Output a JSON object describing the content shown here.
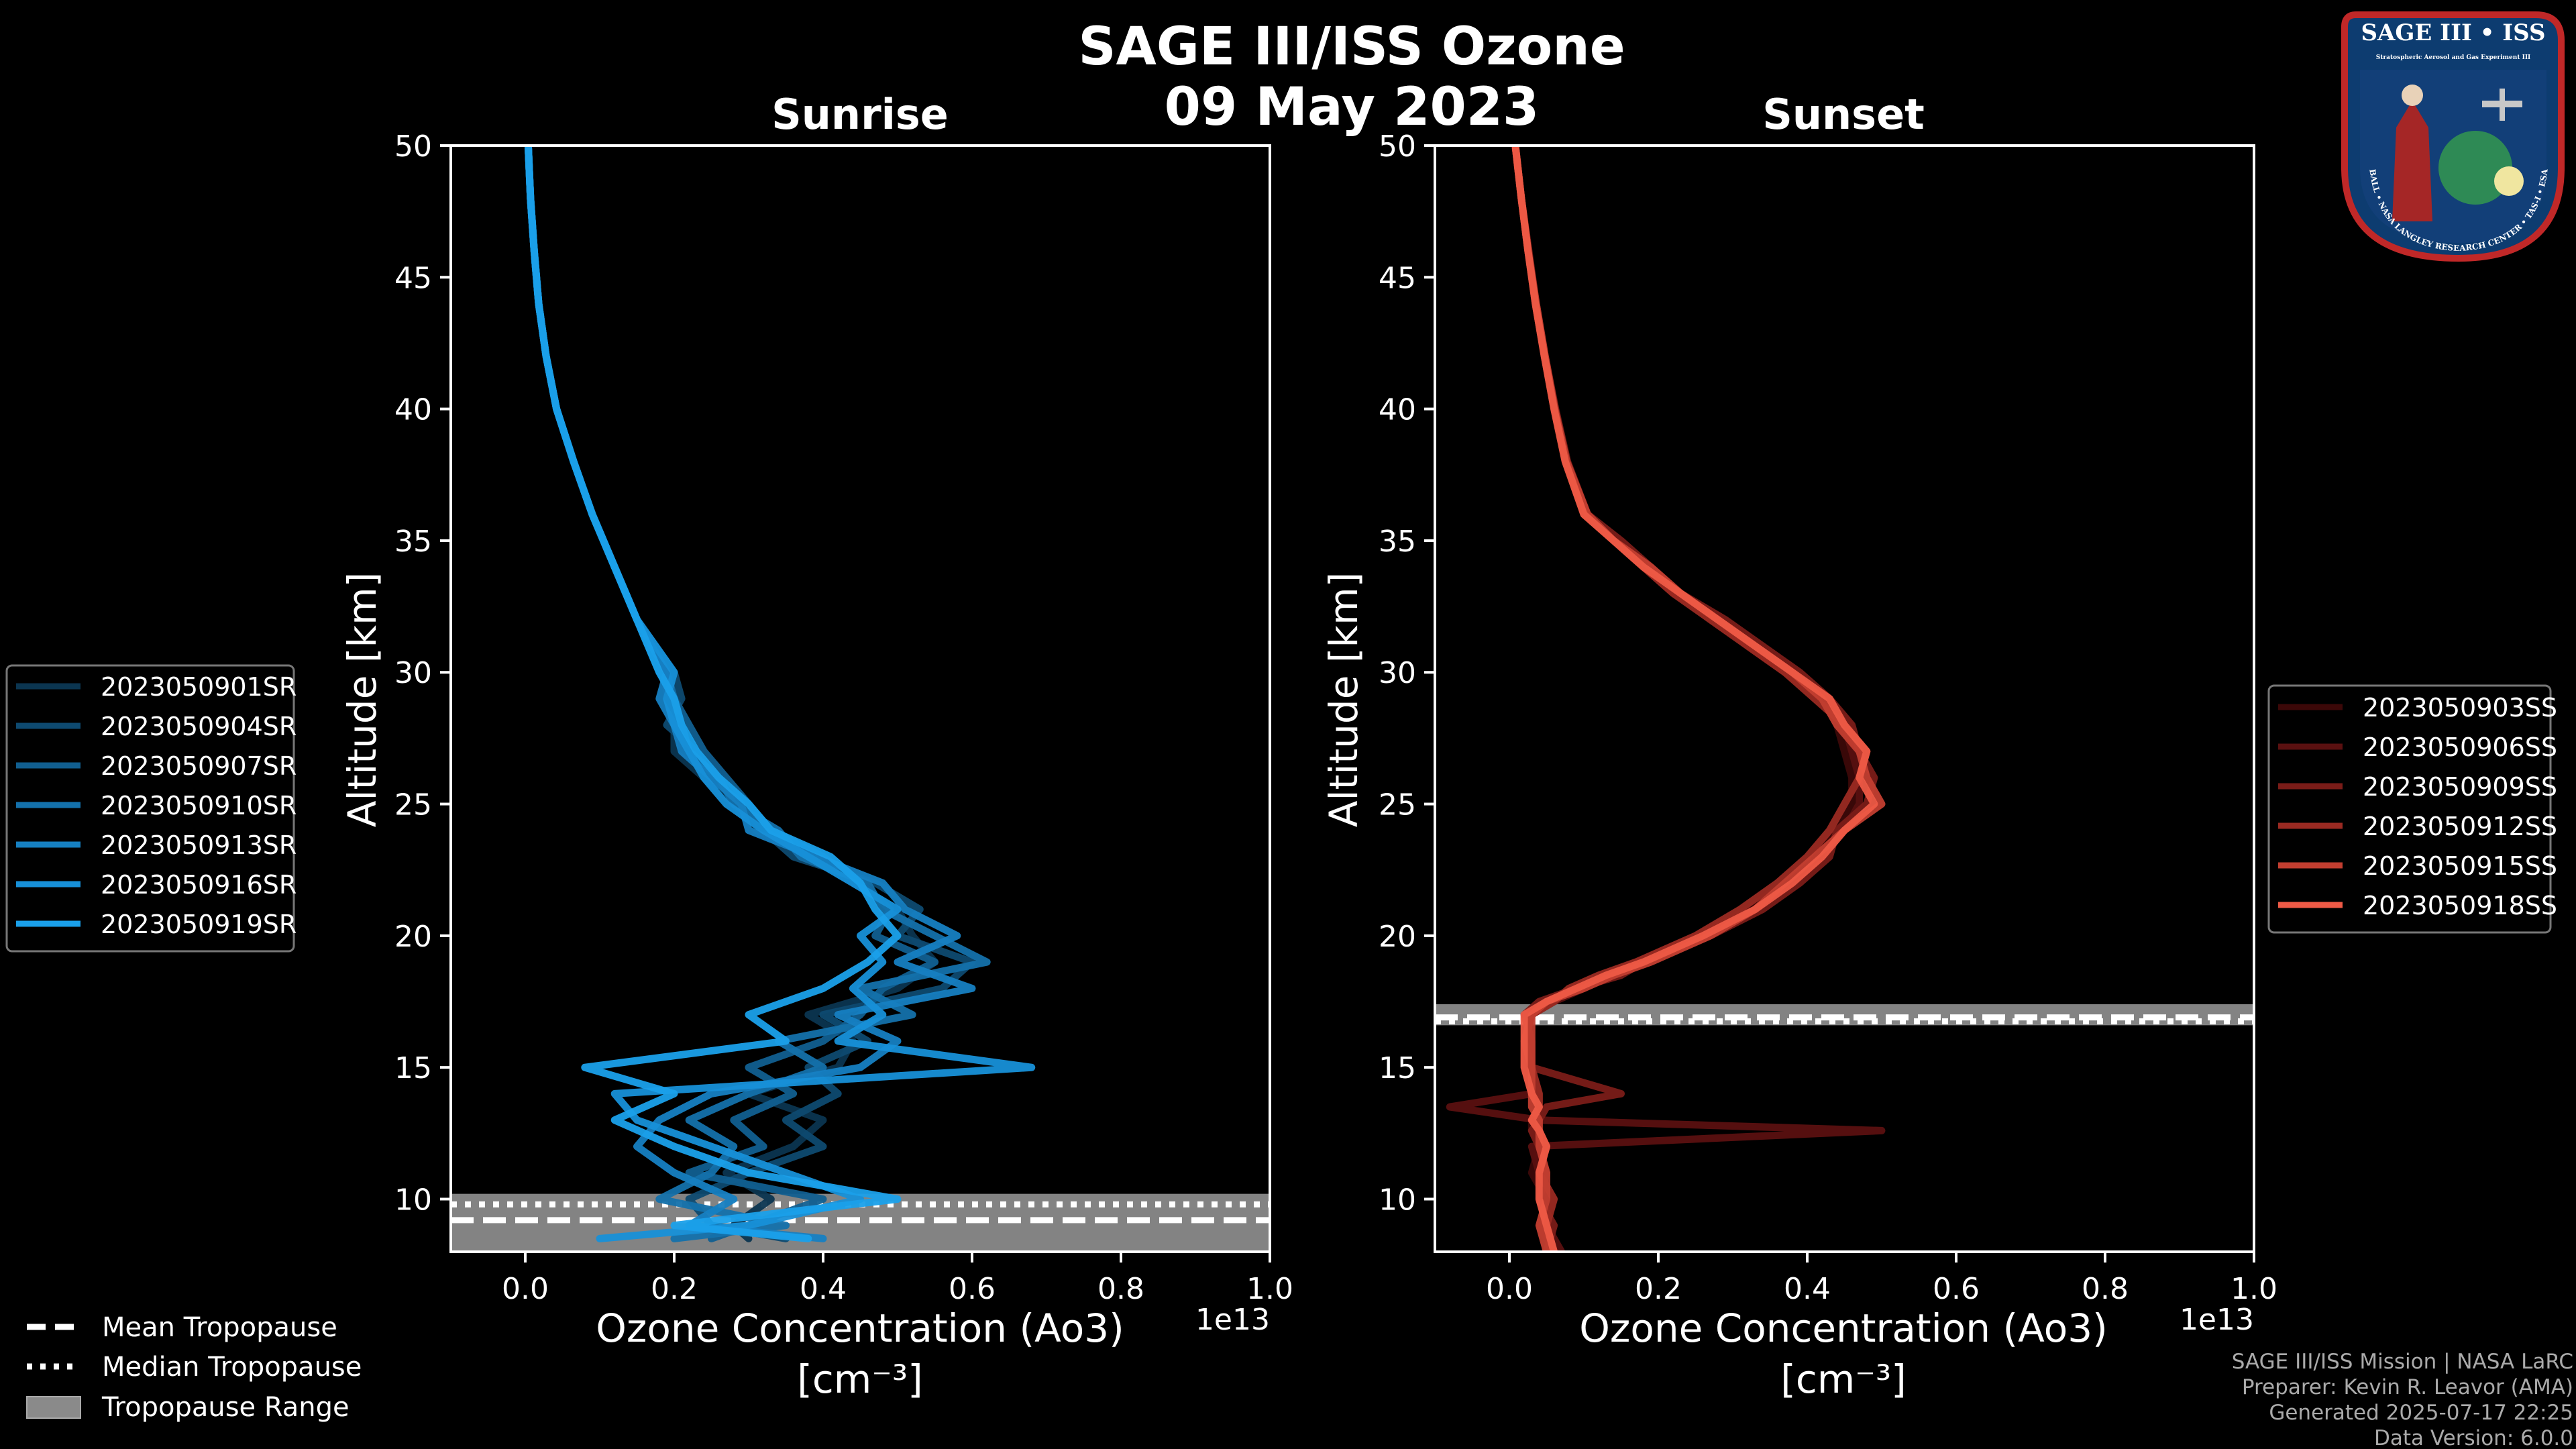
{
  "figure": {
    "title_line1": "SAGE III/ISS Ozone",
    "title_line2": "09 May 2023"
  },
  "badge": {
    "title": "SAGE III • ISS",
    "subtitle": "Stratospheric Aerosol and Gas Experiment III",
    "ring_text": "BALL • NASA LANGLEY RESEARCH CENTER • TAS-I • ESA"
  },
  "credits": {
    "line1": "SAGE III/ISS Mission | NASA LaRC",
    "line2": "Preparer: Kevin R. Leavor (AMA)",
    "line3": "Generated 2025-07-17 22:25",
    "line4": "Data Version: 6.0.0"
  },
  "tropo_legend": {
    "mean": "Mean Tropopause",
    "median": "Median Tropopause",
    "range": "Tropopause Range"
  },
  "colors": {
    "sunrise": [
      "#0b3550",
      "#0e4a70",
      "#115f90",
      "#1471ab",
      "#1680c2",
      "#1790d8",
      "#1aa0ea"
    ],
    "sunset": [
      "#3c0808",
      "#5a1010",
      "#7a1c18",
      "#9a2a22",
      "#c23e30",
      "#ee5a46"
    ],
    "tropo_range": "#8a8a8a"
  },
  "chart_data": [
    {
      "type": "line",
      "title": "Sunrise",
      "xlabel": "Ozone Concentration (Ao3)",
      "xlabel_units": "[cm⁻³]",
      "ylabel": "Altitude [km]",
      "x_offset_label": "1e13",
      "xlim": [
        -0.1,
        1.0
      ],
      "ylim": [
        8,
        50
      ],
      "xticks": [
        "0.0",
        "0.2",
        "0.4",
        "0.6",
        "0.8",
        "1.0"
      ],
      "yticks": [
        "10",
        "15",
        "20",
        "25",
        "30",
        "35",
        "40",
        "45",
        "50"
      ],
      "tropopause": {
        "mean": 9.2,
        "median": 9.8,
        "range": [
          8.0,
          10.2
        ]
      },
      "altitudes": [
        8.5,
        9,
        10,
        11,
        12,
        13,
        14,
        15,
        16,
        17,
        18,
        19,
        20,
        21,
        22,
        23,
        24,
        25,
        26,
        27,
        28,
        29,
        30,
        32,
        34,
        36,
        38,
        40,
        42,
        44,
        46,
        48,
        50
      ],
      "series": [
        {
          "name": "2023050901SR",
          "values": [
            0.3,
            0.28,
            0.33,
            0.27,
            0.36,
            0.4,
            0.3,
            0.42,
            0.44,
            0.38,
            0.5,
            0.55,
            0.52,
            0.5,
            0.44,
            0.38,
            0.31,
            0.28,
            0.24,
            0.2,
            0.2,
            0.19,
            0.19,
            0.15,
            0.12,
            0.09,
            0.065,
            0.042,
            0.028,
            0.018,
            0.012,
            0.007,
            0.004
          ]
        },
        {
          "name": "2023050904SR",
          "values": [
            0.35,
            0.25,
            0.22,
            0.3,
            0.4,
            0.35,
            0.42,
            0.38,
            0.46,
            0.4,
            0.56,
            0.6,
            0.5,
            0.53,
            0.47,
            0.36,
            0.32,
            0.29,
            0.25,
            0.23,
            0.19,
            0.21,
            0.2,
            0.15,
            0.12,
            0.09,
            0.065,
            0.042,
            0.028,
            0.018,
            0.012,
            0.007,
            0.004
          ]
        },
        {
          "name": "2023050907SR",
          "values": [
            0.25,
            0.3,
            0.4,
            0.22,
            0.32,
            0.28,
            0.36,
            0.3,
            0.4,
            0.45,
            0.48,
            0.55,
            0.47,
            0.49,
            0.45,
            0.4,
            0.33,
            0.3,
            0.27,
            0.24,
            0.22,
            0.2,
            0.18,
            0.15,
            0.12,
            0.09,
            0.065,
            0.042,
            0.028,
            0.018,
            0.012,
            0.007,
            0.004
          ]
        },
        {
          "name": "2023050910SR",
          "values": [
            0.2,
            0.35,
            0.18,
            0.25,
            0.28,
            0.22,
            0.3,
            0.4,
            0.34,
            0.52,
            0.45,
            0.62,
            0.55,
            0.48,
            0.46,
            0.37,
            0.34,
            0.28,
            0.26,
            0.22,
            0.21,
            0.2,
            0.19,
            0.15,
            0.12,
            0.09,
            0.065,
            0.042,
            0.028,
            0.018,
            0.012,
            0.007,
            0.004
          ]
        },
        {
          "name": "2023050913SR",
          "values": [
            0.4,
            0.22,
            0.28,
            0.2,
            0.15,
            0.18,
            0.25,
            0.45,
            0.5,
            0.42,
            0.6,
            0.5,
            0.58,
            0.51,
            0.48,
            0.39,
            0.3,
            0.29,
            0.25,
            0.21,
            0.2,
            0.18,
            0.19,
            0.15,
            0.12,
            0.09,
            0.065,
            0.042,
            0.028,
            0.018,
            0.012,
            0.007,
            0.004
          ]
        },
        {
          "name": "2023050916SR",
          "values": [
            0.1,
            0.3,
            0.45,
            0.35,
            0.25,
            0.15,
            0.12,
            0.68,
            0.42,
            0.48,
            0.44,
            0.48,
            0.45,
            0.5,
            0.44,
            0.38,
            0.32,
            0.27,
            0.24,
            0.22,
            0.2,
            0.19,
            0.2,
            0.15,
            0.12,
            0.09,
            0.065,
            0.042,
            0.028,
            0.018,
            0.012,
            0.007,
            0.004
          ]
        },
        {
          "name": "2023050919SR",
          "values": [
            0.38,
            0.2,
            0.5,
            0.3,
            0.2,
            0.12,
            0.2,
            0.08,
            0.35,
            0.3,
            0.4,
            0.46,
            0.5,
            0.47,
            0.45,
            0.41,
            0.33,
            0.3,
            0.26,
            0.23,
            0.21,
            0.2,
            0.18,
            0.15,
            0.12,
            0.09,
            0.065,
            0.042,
            0.028,
            0.018,
            0.012,
            0.007,
            0.004
          ]
        }
      ]
    },
    {
      "type": "line",
      "title": "Sunset",
      "xlabel": "Ozone Concentration (Ao3)",
      "xlabel_units": "[cm⁻³]",
      "ylabel": "Altitude [km]",
      "x_offset_label": "1e13",
      "xlim": [
        -0.1,
        1.0
      ],
      "ylim": [
        8,
        50
      ],
      "tropopause": {
        "mean": 16.9,
        "median": 16.75,
        "range": [
          16.6,
          17.4
        ]
      },
      "xticks": [
        "0.0",
        "0.2",
        "0.4",
        "0.6",
        "0.8",
        "1.0"
      ],
      "yticks": [
        "10",
        "15",
        "20",
        "25",
        "30",
        "35",
        "40",
        "45",
        "50"
      ],
      "altitudes": [
        8,
        9,
        10,
        11,
        12,
        12.6,
        13,
        13.5,
        14,
        15,
        16,
        17,
        17.5,
        18,
        18.5,
        19,
        20,
        21,
        22,
        23,
        24,
        25,
        26,
        27,
        28,
        29,
        30,
        31,
        32,
        33,
        34,
        35,
        36,
        38,
        40,
        42,
        44,
        46,
        48,
        50
      ],
      "series": [
        {
          "name": "2023050903SS",
          "values": [
            0.06,
            0.04,
            0.05,
            0.03,
            0.04,
            0.03,
            0.03,
            0.04,
            0.03,
            0.02,
            0.02,
            0.03,
            0.05,
            0.09,
            0.14,
            0.17,
            0.25,
            0.32,
            0.37,
            0.41,
            0.44,
            0.46,
            0.46,
            0.45,
            0.44,
            0.42,
            0.38,
            0.33,
            0.28,
            0.23,
            0.18,
            0.14,
            0.105,
            0.075,
            0.06,
            0.047,
            0.035,
            0.025,
            0.016,
            0.008
          ]
        },
        {
          "name": "2023050906SS",
          "values": [
            0.07,
            0.05,
            0.04,
            0.04,
            0.03,
            0.5,
            0.04,
            -0.08,
            0.03,
            0.02,
            0.02,
            0.03,
            0.06,
            0.1,
            0.13,
            0.18,
            0.26,
            0.33,
            0.38,
            0.42,
            0.45,
            0.47,
            0.47,
            0.46,
            0.45,
            0.42,
            0.37,
            0.32,
            0.28,
            0.22,
            0.18,
            0.14,
            0.1,
            0.075,
            0.06,
            0.047,
            0.035,
            0.025,
            0.016,
            0.008
          ]
        },
        {
          "name": "2023050909SS",
          "values": [
            0.05,
            0.06,
            0.04,
            0.05,
            0.04,
            0.03,
            0.04,
            0.05,
            0.15,
            0.03,
            0.03,
            0.02,
            0.04,
            0.09,
            0.15,
            0.18,
            0.27,
            0.34,
            0.39,
            0.43,
            0.44,
            0.48,
            0.49,
            0.47,
            0.46,
            0.43,
            0.39,
            0.34,
            0.29,
            0.23,
            0.19,
            0.15,
            0.105,
            0.078,
            0.062,
            0.048,
            0.036,
            0.026,
            0.016,
            0.008
          ]
        },
        {
          "name": "2023050912SS",
          "values": [
            0.06,
            0.05,
            0.06,
            0.04,
            0.05,
            0.04,
            0.03,
            0.04,
            0.04,
            0.03,
            0.02,
            0.03,
            0.06,
            0.08,
            0.12,
            0.17,
            0.25,
            0.31,
            0.36,
            0.4,
            0.43,
            0.45,
            0.47,
            0.48,
            0.45,
            0.41,
            0.37,
            0.32,
            0.27,
            0.22,
            0.18,
            0.14,
            0.1,
            0.076,
            0.061,
            0.047,
            0.035,
            0.025,
            0.016,
            0.008
          ]
        },
        {
          "name": "2023050915SS",
          "values": [
            0.05,
            0.04,
            0.05,
            0.05,
            0.04,
            0.04,
            0.04,
            0.03,
            0.03,
            0.03,
            0.03,
            0.03,
            0.05,
            0.1,
            0.14,
            0.19,
            0.27,
            0.33,
            0.37,
            0.41,
            0.45,
            0.5,
            0.48,
            0.47,
            0.44,
            0.42,
            0.38,
            0.33,
            0.28,
            0.23,
            0.19,
            0.14,
            0.105,
            0.077,
            0.061,
            0.048,
            0.036,
            0.025,
            0.016,
            0.008
          ]
        },
        {
          "name": "2023050918SS",
          "values": [
            0.06,
            0.05,
            0.04,
            0.04,
            0.05,
            0.04,
            0.03,
            0.04,
            0.03,
            0.02,
            0.02,
            0.02,
            0.05,
            0.09,
            0.13,
            0.18,
            0.26,
            0.33,
            0.38,
            0.42,
            0.45,
            0.49,
            0.47,
            0.48,
            0.45,
            0.43,
            0.38,
            0.33,
            0.28,
            0.23,
            0.18,
            0.14,
            0.1,
            0.075,
            0.06,
            0.047,
            0.035,
            0.025,
            0.016,
            0.008
          ]
        }
      ]
    }
  ]
}
